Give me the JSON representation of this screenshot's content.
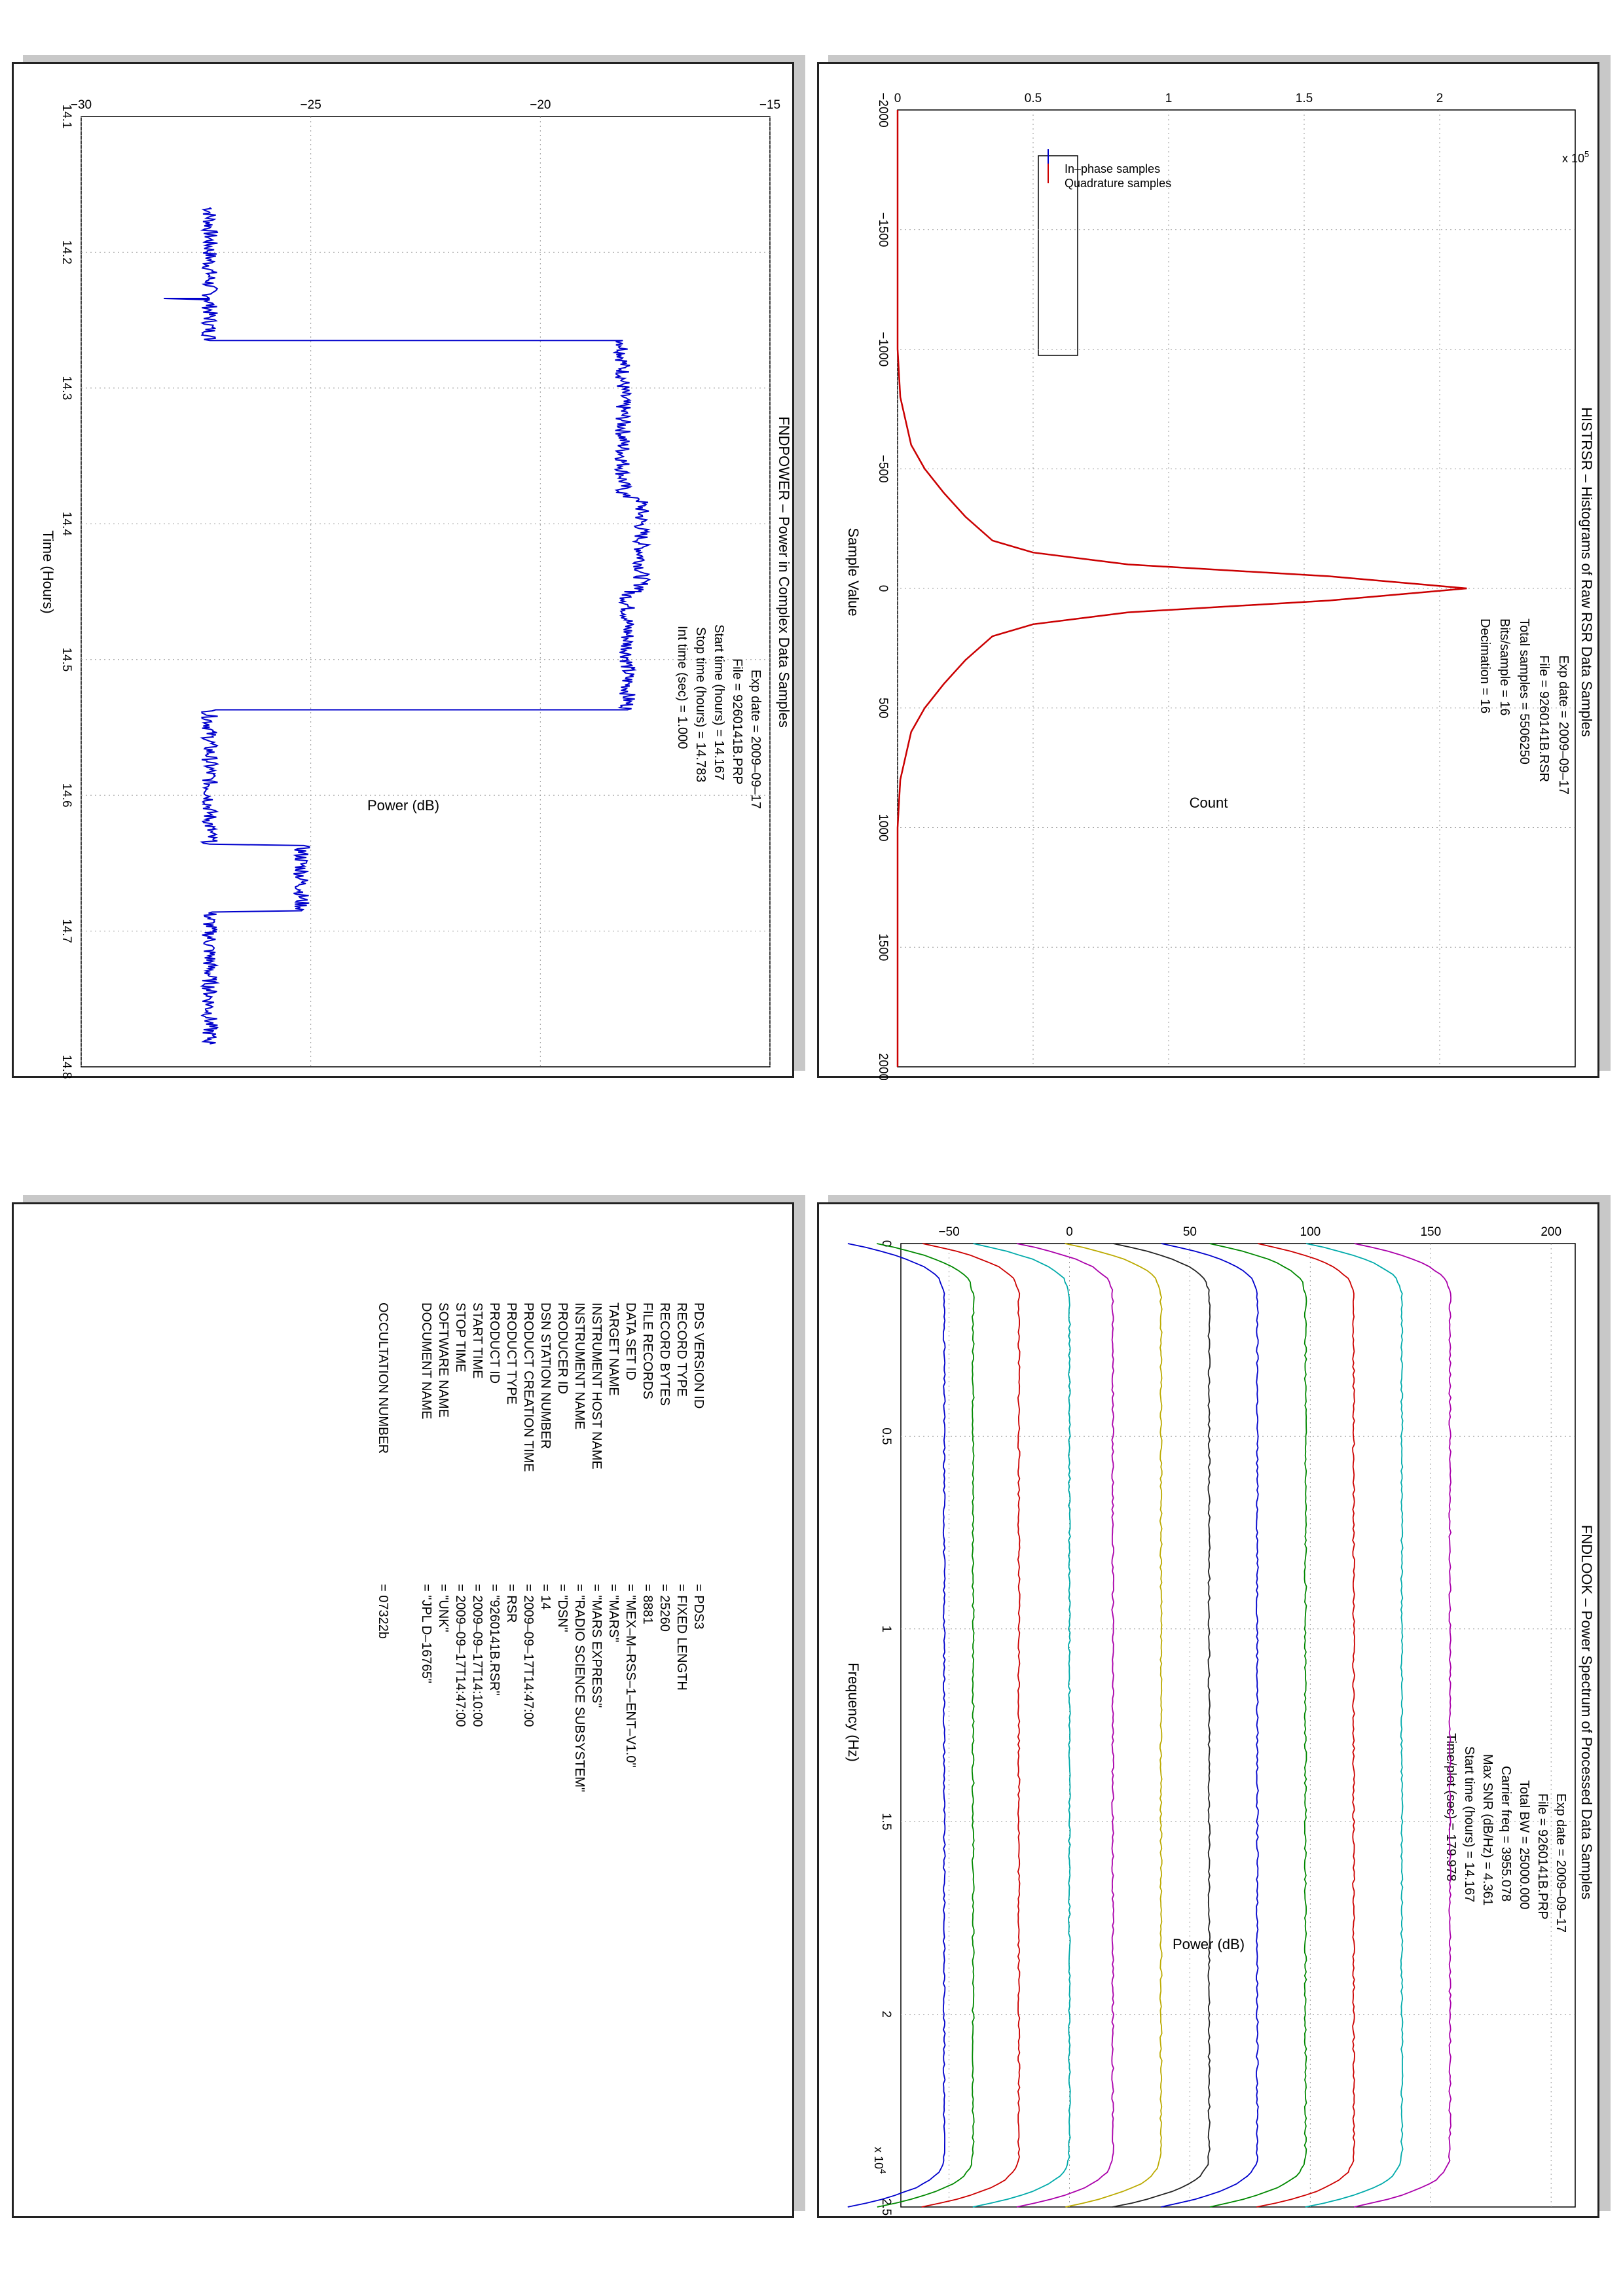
{
  "chart_data": [
    {
      "id": "fndpower",
      "type": "line",
      "title": "FNDPOWER – Power in Complex Data Samples",
      "xlabel": "Time (Hours)",
      "ylabel": "Power (dB)",
      "xlim": [
        14.1,
        14.8
      ],
      "ylim": [
        -30,
        -15
      ],
      "xticks": [
        "14.1",
        "14.2",
        "14.3",
        "14.4",
        "14.5",
        "14.6",
        "14.7",
        "14.8"
      ],
      "yticks": [
        "−30",
        "−25",
        "−20",
        "−15"
      ],
      "grid": true,
      "annotation": [
        "Exp date = 2009–09–17",
        "File = 9260141B.PRP",
        "Start time (hours) = 14.167",
        "Stop time (hours) = 14.783",
        "Int time (sec) =      1.000"
      ],
      "series": [
        {
          "color": "#0000cc",
          "x": [
            14.167,
            14.234,
            14.234,
            14.235,
            14.236,
            14.265,
            14.265,
            14.38,
            14.381,
            14.45,
            14.45,
            14.51,
            14.537,
            14.537,
            14.636,
            14.637,
            14.685,
            14.686,
            14.783
          ],
          "y": [
            -27.2,
            -27.2,
            -28.2,
            -27.2,
            -27.2,
            -27.2,
            -18.2,
            -18.2,
            -17.8,
            -17.8,
            -18.1,
            -18.1,
            -18.1,
            -27.2,
            -27.2,
            -25.2,
            -25.2,
            -27.2,
            -27.2
          ]
        }
      ]
    },
    {
      "id": "histrsr",
      "type": "line",
      "title": "HISTRSR – Histograms of Raw RSR Data Samples",
      "xlabel": "Sample Value",
      "ylabel": "Count",
      "y_multiplier": "x 10",
      "y_exponent": "5",
      "xlim": [
        -2000,
        2000
      ],
      "ylim": [
        0,
        2.5
      ],
      "xticks": [
        "−2000",
        "−1500",
        "−1000",
        "−500",
        "0",
        "500",
        "1000",
        "1500",
        "2000"
      ],
      "yticks": [
        "0",
        "0.5",
        "1",
        "1.5",
        "2"
      ],
      "grid": true,
      "legend_position": "top-right",
      "annotation": [
        "Exp date = 2009–09–17",
        "File = 9260141B.RSR",
        "Total samples =   5506250",
        "Bits/sample   =         16",
        "Decimation    =         16"
      ],
      "series": [
        {
          "name": "In–phase samples",
          "color": "#0000cc",
          "x": [
            -2000,
            -1000,
            -800,
            -600,
            -500,
            -400,
            -300,
            -200,
            -150,
            -100,
            -50,
            0,
            50,
            100,
            150,
            200,
            300,
            400,
            500,
            600,
            800,
            1000,
            2000
          ],
          "y": [
            0,
            0,
            0.01,
            0.05,
            0.1,
            0.17,
            0.25,
            0.35,
            0.5,
            0.85,
            1.6,
            2.1,
            1.6,
            0.85,
            0.5,
            0.35,
            0.25,
            0.17,
            0.1,
            0.05,
            0.01,
            0,
            0
          ]
        },
        {
          "name": "Quadrature samples",
          "color": "#cc0000",
          "x": [
            -2000,
            -1000,
            -800,
            -600,
            -500,
            -400,
            -300,
            -200,
            -150,
            -100,
            -50,
            0,
            50,
            100,
            150,
            200,
            300,
            400,
            500,
            600,
            800,
            1000,
            2000
          ],
          "y": [
            0,
            0,
            0.01,
            0.05,
            0.1,
            0.17,
            0.25,
            0.35,
            0.5,
            0.85,
            1.6,
            2.1,
            1.6,
            0.85,
            0.5,
            0.35,
            0.25,
            0.17,
            0.1,
            0.05,
            0.01,
            0,
            0
          ]
        }
      ]
    },
    {
      "id": "fndlook",
      "type": "line",
      "title": "FNDLOOK – Power Spectrum of Processed Data Samples",
      "xlabel": "Frequency (Hz)",
      "ylabel": "Power (dB)",
      "x_multiplier": "x 10",
      "x_exponent": "4",
      "xlim": [
        0,
        25000
      ],
      "ylim": [
        -70,
        210
      ],
      "xticks": [
        "0",
        "0.5",
        "1",
        "1.5",
        "2",
        "2.5"
      ],
      "yticks": [
        "−50",
        "0",
        "50",
        "100",
        "150",
        "200"
      ],
      "grid": true,
      "annotation": [
        "Exp date = 2009–09–17",
        "File = 9260141B.PRP",
        "Total BW =       25000.000",
        "Carrier freq =    3955.078",
        "Max SNR (dB/Hz) =      4.361",
        "Start time (hours) =   14.167",
        "Time/plot (sec) =    179.978"
      ],
      "series": [
        {
          "color": "#0000cc",
          "level": -52
        },
        {
          "color": "#008800",
          "level": -40
        },
        {
          "color": "#cc0000",
          "level": -21
        },
        {
          "color": "#00aaaa",
          "level": 0
        },
        {
          "color": "#aa00aa",
          "level": 18
        },
        {
          "color": "#bbaa00",
          "level": 38
        },
        {
          "color": "#222222",
          "level": 58
        },
        {
          "color": "#0000cc",
          "level": 78
        },
        {
          "color": "#008800",
          "level": 98
        },
        {
          "color": "#cc0000",
          "level": 118
        },
        {
          "color": "#00aaaa",
          "level": 138
        },
        {
          "color": "#aa00aa",
          "level": 158
        }
      ]
    }
  ],
  "label_table": {
    "rows": [
      {
        "key": "PDS VERSION ID",
        "value": "= PDS3"
      },
      {
        "key": "RECORD TYPE",
        "value": "= FIXED LENGTH"
      },
      {
        "key": "RECORD BYTES",
        "value": "= 25260"
      },
      {
        "key": "FILE RECORDS",
        "value": "= 8881"
      },
      {
        "key": "DATA SET ID",
        "value": "= \"MEX–M–RSS–1–ENT–V1.0\""
      },
      {
        "key": "TARGET NAME",
        "value": "= \"MARS\""
      },
      {
        "key": "INSTRUMENT HOST NAME",
        "value": "= \"MARS EXPRESS\""
      },
      {
        "key": "INSTRUMENT NAME",
        "value": "= \"RADIO SCIENCE SUBSYSTEM\""
      },
      {
        "key": "PRODUCER ID",
        "value": "= \"DSN\""
      },
      {
        "key": "DSN STATION NUMBER",
        "value": "= 14"
      },
      {
        "key": "PRODUCT CREATION TIME",
        "value": "= 2009–09–17T14:47:00"
      },
      {
        "key": "PRODUCT TYPE",
        "value": "= RSR"
      },
      {
        "key": "PRODUCT ID",
        "value": "= \"9260141B.RSR\""
      },
      {
        "key": "START TIME",
        "value": "= 2009–09–17T14:10:00"
      },
      {
        "key": "STOP TIME",
        "value": "= 2009–09–17T14:47:00"
      },
      {
        "key": "SOFTWARE NAME",
        "value": "= \"UNK\""
      },
      {
        "key": "DOCUMENT NAME",
        "value": "= \"JPL D–16765\""
      },
      {
        "key": "OCCULTATION NUMBER",
        "value": "= 07322b"
      }
    ]
  }
}
